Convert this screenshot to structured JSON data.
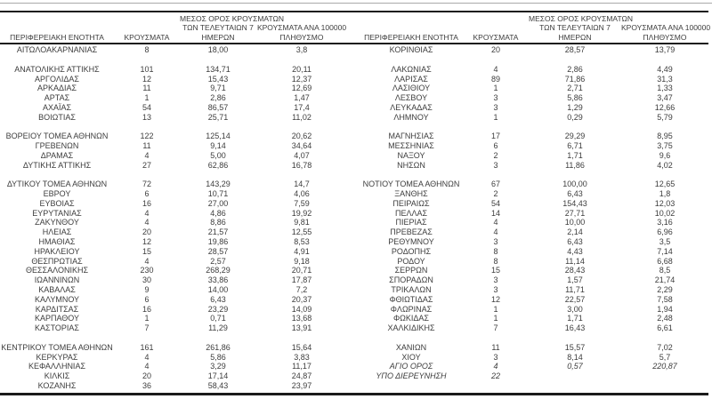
{
  "page": {
    "background": "#ffffff",
    "text_color": "#3d3d3d",
    "rule_color": "#1b1b1b",
    "thin_rule_color": "#a9a9a9"
  },
  "header": {
    "region": "ΠΕΡΙΦΕΡΕΙΑΚΗ ΕΝΟΤΗΤΑ",
    "cases": "ΚΡΟΥΣΜΑΤΑ",
    "avg7_lines": [
      "ΜΕΣΟΣ ΟΡΟΣ ΚΡΟΥΣΜΑΤΩΝ",
      "ΤΩΝ ΤΕΛΕΥΤΑΙΩΝ 7",
      "ΗΜΕΡΩΝ"
    ],
    "per100k_lines": [
      "ΚΡΟΥΣΜΑΤΑ ΑΝΑ 100000",
      "ΠΛΗΘΥΣΜΟ"
    ]
  },
  "left_table": {
    "rows": [
      {
        "region": "ΑΙΤΩΛΟΑΚΑΡΝΑΝΙΑΣ",
        "cases": "8",
        "avg7": "18,00",
        "per100k": "3,8"
      },
      {
        "blank": true
      },
      {
        "region": "ΑΝΑΤΟΛΙΚΗΣ ΑΤΤΙΚΗΣ",
        "cases": "101",
        "avg7": "134,71",
        "per100k": "20,11"
      },
      {
        "region": "ΑΡΓΟΛΙΔΑΣ",
        "cases": "12",
        "avg7": "15,43",
        "per100k": "12,37"
      },
      {
        "region": "ΑΡΚΑΔΙΑΣ",
        "cases": "11",
        "avg7": "9,71",
        "per100k": "12,69"
      },
      {
        "region": "ΑΡΤΑΣ",
        "cases": "1",
        "avg7": "2,86",
        "per100k": "1,47"
      },
      {
        "region": "ΑΧΑΪΑΣ",
        "cases": "54",
        "avg7": "86,57",
        "per100k": "17,4"
      },
      {
        "region": "ΒΟΙΩΤΙΑΣ",
        "cases": "13",
        "avg7": "25,71",
        "per100k": "11,02"
      },
      {
        "blank": true
      },
      {
        "region": "ΒΟΡΕΙΟΥ ΤΟΜΕΑ ΑΘΗΝΩΝ",
        "cases": "122",
        "avg7": "125,14",
        "per100k": "20,62"
      },
      {
        "region": "ΓΡΕΒΕΝΩΝ",
        "cases": "11",
        "avg7": "9,14",
        "per100k": "34,64"
      },
      {
        "region": "ΔΡΑΜΑΣ",
        "cases": "4",
        "avg7": "5,00",
        "per100k": "4,07"
      },
      {
        "region": "ΔΥΤΙΚΗΣ ΑΤΤΙΚΗΣ",
        "cases": "27",
        "avg7": "62,86",
        "per100k": "16,78"
      },
      {
        "blank": true
      },
      {
        "region": "ΔΥΤΙΚΟΥ ΤΟΜΕΑ ΑΘΗΝΩΝ",
        "cases": "72",
        "avg7": "143,29",
        "per100k": "14,7"
      },
      {
        "region": "ΕΒΡΟΥ",
        "cases": "6",
        "avg7": "10,71",
        "per100k": "4,06"
      },
      {
        "region": "ΕΥΒΟΙΑΣ",
        "cases": "16",
        "avg7": "27,00",
        "per100k": "7,59"
      },
      {
        "region": "ΕΥΡΥΤΑΝΙΑΣ",
        "cases": "4",
        "avg7": "4,86",
        "per100k": "19,92"
      },
      {
        "region": "ΖΑΚΥΝΘΟΥ",
        "cases": "4",
        "avg7": "8,86",
        "per100k": "9,81"
      },
      {
        "region": "ΗΛΕΙΑΣ",
        "cases": "20",
        "avg7": "21,57",
        "per100k": "12,55"
      },
      {
        "region": "ΗΜΑΘΙΑΣ",
        "cases": "12",
        "avg7": "19,86",
        "per100k": "8,53"
      },
      {
        "region": "ΗΡΑΚΛΕΙΟΥ",
        "cases": "15",
        "avg7": "28,57",
        "per100k": "4,91"
      },
      {
        "region": "ΘΕΣΠΡΩΤΙΑΣ",
        "cases": "4",
        "avg7": "2,57",
        "per100k": "9,18"
      },
      {
        "region": "ΘΕΣΣΑΛΟΝΙΚΗΣ",
        "cases": "230",
        "avg7": "268,29",
        "per100k": "20,71"
      },
      {
        "region": "ΙΩΑΝΝΙΝΩΝ",
        "cases": "30",
        "avg7": "33,86",
        "per100k": "17,87"
      },
      {
        "region": "ΚΑΒΑΛΑΣ",
        "cases": "9",
        "avg7": "14,00",
        "per100k": "7,2"
      },
      {
        "region": "ΚΑΛΥΜΝΟΥ",
        "cases": "6",
        "avg7": "6,43",
        "per100k": "20,37"
      },
      {
        "region": "ΚΑΡΔΙΤΣΑΣ",
        "cases": "16",
        "avg7": "23,29",
        "per100k": "14,09"
      },
      {
        "region": "ΚΑΡΠΑΘΟΥ",
        "cases": "1",
        "avg7": "0,71",
        "per100k": "13,68"
      },
      {
        "region": "ΚΑΣΤΟΡΙΑΣ",
        "cases": "7",
        "avg7": "11,29",
        "per100k": "13,91"
      },
      {
        "blank": true
      },
      {
        "region": "ΚΕΝΤΡΙΚΟΥ ΤΟΜΕΑ ΑΘΗΝΩΝ",
        "cases": "161",
        "avg7": "261,86",
        "per100k": "15,64"
      },
      {
        "region": "ΚΕΡΚΥΡΑΣ",
        "cases": "4",
        "avg7": "5,86",
        "per100k": "3,83"
      },
      {
        "region": "ΚΕΦΑΛΛΗΝΙΑΣ",
        "cases": "4",
        "avg7": "3,29",
        "per100k": "11,17"
      },
      {
        "region": "ΚΙΛΚΙΣ",
        "cases": "20",
        "avg7": "17,14",
        "per100k": "24,87"
      },
      {
        "region": "ΚΟΖΑΝΗΣ",
        "cases": "36",
        "avg7": "58,43",
        "per100k": "23,97"
      }
    ]
  },
  "right_table": {
    "rows": [
      {
        "region": "ΚΟΡΙΝΘΙΑΣ",
        "cases": "20",
        "avg7": "28,57",
        "per100k": "13,79"
      },
      {
        "blank": true
      },
      {
        "region": "ΛΑΚΩΝΙΑΣ",
        "cases": "4",
        "avg7": "2,86",
        "per100k": "4,49"
      },
      {
        "region": "ΛΑΡΙΣΑΣ",
        "cases": "89",
        "avg7": "71,86",
        "per100k": "31,3"
      },
      {
        "region": "ΛΑΣΙΘΙΟΥ",
        "cases": "1",
        "avg7": "2,71",
        "per100k": "1,33"
      },
      {
        "region": "ΛΕΣΒΟΥ",
        "cases": "3",
        "avg7": "5,86",
        "per100k": "3,47"
      },
      {
        "region": "ΛΕΥΚΑΔΑΣ",
        "cases": "3",
        "avg7": "1,29",
        "per100k": "12,66"
      },
      {
        "region": "ΛΗΜΝΟΥ",
        "cases": "1",
        "avg7": "0,29",
        "per100k": "5,79"
      },
      {
        "blank": true
      },
      {
        "region": "ΜΑΓΝΗΣΙΑΣ",
        "cases": "17",
        "avg7": "29,29",
        "per100k": "8,95"
      },
      {
        "region": "ΜΕΣΣΗΝΙΑΣ",
        "cases": "6",
        "avg7": "6,71",
        "per100k": "3,75"
      },
      {
        "region": "ΝΑΞΟΥ",
        "cases": "2",
        "avg7": "1,71",
        "per100k": "9,6"
      },
      {
        "region": "ΝΗΣΩΝ",
        "cases": "3",
        "avg7": "11,86",
        "per100k": "4,02"
      },
      {
        "blank": true
      },
      {
        "region": "ΝΟΤΙΟΥ ΤΟΜΕΑ ΑΘΗΝΩΝ",
        "cases": "67",
        "avg7": "100,00",
        "per100k": "12,65"
      },
      {
        "region": "ΞΑΝΘΗΣ",
        "cases": "2",
        "avg7": "6,43",
        "per100k": "1,8"
      },
      {
        "region": "ΠΕΙΡΑΙΩΣ",
        "cases": "54",
        "avg7": "154,43",
        "per100k": "12,03"
      },
      {
        "region": "ΠΕΛΛΑΣ",
        "cases": "14",
        "avg7": "27,71",
        "per100k": "10,02"
      },
      {
        "region": "ΠΙΕΡΙΑΣ",
        "cases": "4",
        "avg7": "10,00",
        "per100k": "3,16"
      },
      {
        "region": "ΠΡΕΒΕΖΑΣ",
        "cases": "4",
        "avg7": "2,14",
        "per100k": "6,96"
      },
      {
        "region": "ΡΕΘΥΜΝΟΥ",
        "cases": "3",
        "avg7": "6,43",
        "per100k": "3,5"
      },
      {
        "region": "ΡΟΔΟΠΗΣ",
        "cases": "8",
        "avg7": "4,43",
        "per100k": "7,14"
      },
      {
        "region": "ΡΟΔΟΥ",
        "cases": "8",
        "avg7": "11,14",
        "per100k": "6,68"
      },
      {
        "region": "ΣΕΡΡΩΝ",
        "cases": "15",
        "avg7": "28,43",
        "per100k": "8,5"
      },
      {
        "region": "ΣΠΟΡΑΔΩΝ",
        "cases": "3",
        "avg7": "1,57",
        "per100k": "21,74"
      },
      {
        "region": "ΤΡΙΚΑΛΩΝ",
        "cases": "3",
        "avg7": "11,71",
        "per100k": "2,29"
      },
      {
        "region": "ΦΘΙΩΤΙΔΑΣ",
        "cases": "12",
        "avg7": "22,57",
        "per100k": "7,58"
      },
      {
        "region": "ΦΛΩΡΙΝΑΣ",
        "cases": "1",
        "avg7": "3,00",
        "per100k": "1,94"
      },
      {
        "region": "ΦΩΚΙΔΑΣ",
        "cases": "1",
        "avg7": "1,71",
        "per100k": "2,48"
      },
      {
        "region": "ΧΑΛΚΙΔΙΚΗΣ",
        "cases": "7",
        "avg7": "16,43",
        "per100k": "6,61"
      },
      {
        "blank": true
      },
      {
        "region": "ΧΑΝΙΩΝ",
        "cases": "11",
        "avg7": "15,57",
        "per100k": "7,02"
      },
      {
        "region": "ΧΙΟΥ",
        "cases": "3",
        "avg7": "8,14",
        "per100k": "5,7"
      },
      {
        "region": "ΑΓΙΟ ΟΡΟΣ",
        "cases": "4",
        "avg7": "0,57",
        "per100k": "220,87",
        "italic": true
      },
      {
        "region": "ΥΠΟ ΔΙΕΡΕΥΝΗΣΗ",
        "cases": "22",
        "avg7": "",
        "per100k": "",
        "italic": true
      },
      {
        "blank": true
      }
    ]
  }
}
